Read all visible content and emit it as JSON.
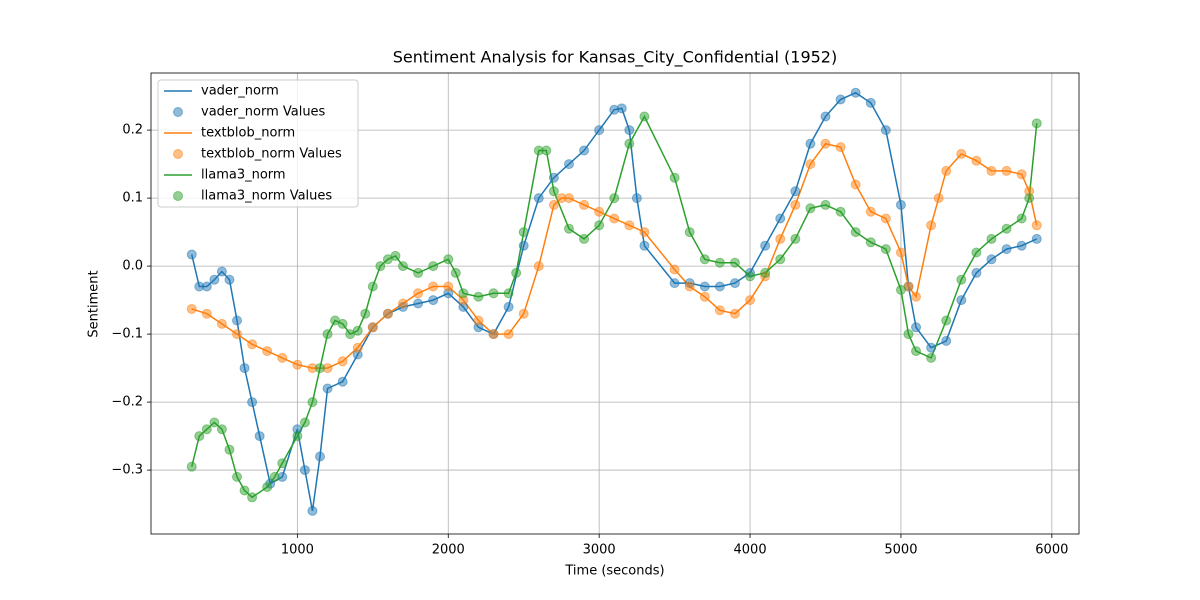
{
  "chart_data": {
    "type": "line",
    "title": "Sentiment Analysis for Kansas_City_Confidential (1952)",
    "xlabel": "Time (seconds)",
    "ylabel": "Sentiment",
    "xlim": [
      30,
      6180
    ],
    "ylim": [
      -0.394,
      0.284
    ],
    "xticks": [
      1000,
      2000,
      3000,
      4000,
      5000,
      6000
    ],
    "yticks": [
      {
        "value": -0.3,
        "label": "−0.3"
      },
      {
        "value": -0.2,
        "label": "−0.2"
      },
      {
        "value": -0.1,
        "label": "−0.1"
      },
      {
        "value": 0,
        "label": "0.0"
      },
      {
        "value": 0.1,
        "label": "0.1"
      },
      {
        "value": 0.2,
        "label": "0.2"
      }
    ],
    "grid": true,
    "legend": "upper left",
    "series": [
      {
        "name": "vader_norm",
        "values_name": "vader_norm Values",
        "color": "#1f77b4",
        "x": [
          300,
          350,
          400,
          450,
          500,
          550,
          600,
          650,
          700,
          750,
          820,
          900,
          1000,
          1050,
          1100,
          1150,
          1200,
          1300,
          1400,
          1500,
          1600,
          1700,
          1800,
          1900,
          2000,
          2100,
          2200,
          2300,
          2400,
          2500,
          2600,
          2700,
          2800,
          2900,
          3000,
          3100,
          3150,
          3200,
          3250,
          3300,
          3500,
          3600,
          3700,
          3800,
          3900,
          4000,
          4100,
          4200,
          4300,
          4400,
          4500,
          4600,
          4700,
          4800,
          4900,
          5000,
          5050,
          5100,
          5200,
          5300,
          5400,
          5500,
          5600,
          5700,
          5800,
          5900
        ],
        "values": [
          0.017,
          -0.03,
          -0.03,
          -0.02,
          -0.008,
          -0.02,
          -0.08,
          -0.15,
          -0.2,
          -0.25,
          -0.32,
          -0.31,
          -0.24,
          -0.3,
          -0.36,
          -0.28,
          -0.18,
          -0.17,
          -0.13,
          -0.09,
          -0.07,
          -0.06,
          -0.055,
          -0.05,
          -0.04,
          -0.06,
          -0.09,
          -0.1,
          -0.06,
          0.03,
          0.1,
          0.13,
          0.15,
          0.17,
          0.2,
          0.23,
          0.232,
          0.2,
          0.1,
          0.03,
          -0.025,
          -0.025,
          -0.03,
          -0.03,
          -0.025,
          -0.01,
          0.03,
          0.07,
          0.11,
          0.18,
          0.22,
          0.245,
          0.255,
          0.24,
          0.2,
          0.09,
          -0.03,
          -0.09,
          -0.12,
          -0.11,
          -0.05,
          -0.01,
          0.01,
          0.025,
          0.03,
          0.04
        ]
      },
      {
        "name": "textblob_norm",
        "values_name": "textblob_norm Values",
        "color": "#ff7f0e",
        "x": [
          300,
          400,
          500,
          600,
          700,
          800,
          900,
          1000,
          1100,
          1200,
          1300,
          1400,
          1500,
          1600,
          1700,
          1800,
          1900,
          2000,
          2100,
          2200,
          2300,
          2400,
          2500,
          2600,
          2700,
          2750,
          2800,
          2900,
          3000,
          3100,
          3200,
          3300,
          3500,
          3600,
          3700,
          3800,
          3900,
          4000,
          4100,
          4200,
          4300,
          4400,
          4500,
          4600,
          4700,
          4800,
          4900,
          5000,
          5050,
          5100,
          5200,
          5250,
          5300,
          5400,
          5500,
          5600,
          5700,
          5800,
          5850,
          5900
        ],
        "values": [
          -0.063,
          -0.07,
          -0.085,
          -0.1,
          -0.115,
          -0.125,
          -0.135,
          -0.145,
          -0.15,
          -0.15,
          -0.14,
          -0.12,
          -0.09,
          -0.07,
          -0.055,
          -0.04,
          -0.03,
          -0.03,
          -0.05,
          -0.08,
          -0.1,
          -0.1,
          -0.07,
          0.0,
          0.09,
          0.1,
          0.1,
          0.09,
          0.08,
          0.07,
          0.06,
          0.05,
          -0.005,
          -0.03,
          -0.045,
          -0.065,
          -0.07,
          -0.05,
          -0.015,
          0.04,
          0.09,
          0.15,
          0.18,
          0.175,
          0.12,
          0.08,
          0.07,
          0.02,
          -0.03,
          -0.045,
          0.06,
          0.1,
          0.14,
          0.165,
          0.155,
          0.14,
          0.14,
          0.135,
          0.11,
          0.06
        ]
      },
      {
        "name": "llama3_norm",
        "values_name": "llama3_norm Values",
        "color": "#2ca02c",
        "x": [
          300,
          350,
          400,
          450,
          500,
          550,
          600,
          650,
          700,
          800,
          850,
          900,
          1000,
          1050,
          1100,
          1150,
          1200,
          1250,
          1300,
          1350,
          1400,
          1450,
          1500,
          1550,
          1600,
          1650,
          1700,
          1800,
          1900,
          2000,
          2050,
          2100,
          2200,
          2300,
          2400,
          2450,
          2500,
          2600,
          2650,
          2700,
          2800,
          2900,
          3000,
          3100,
          3200,
          3300,
          3500,
          3600,
          3700,
          3800,
          3900,
          4000,
          4100,
          4200,
          4300,
          4400,
          4500,
          4600,
          4700,
          4800,
          4900,
          5000,
          5050,
          5100,
          5200,
          5300,
          5400,
          5500,
          5600,
          5700,
          5800,
          5850,
          5900
        ],
        "values": [
          -0.295,
          -0.25,
          -0.24,
          -0.23,
          -0.24,
          -0.27,
          -0.31,
          -0.33,
          -0.34,
          -0.325,
          -0.31,
          -0.29,
          -0.25,
          -0.23,
          -0.2,
          -0.15,
          -0.1,
          -0.08,
          -0.085,
          -0.1,
          -0.095,
          -0.07,
          -0.03,
          0.0,
          0.01,
          0.015,
          0.0,
          -0.01,
          0.0,
          0.01,
          -0.01,
          -0.04,
          -0.045,
          -0.04,
          -0.04,
          -0.01,
          0.05,
          0.17,
          0.17,
          0.11,
          0.055,
          0.04,
          0.06,
          0.1,
          0.18,
          0.22,
          0.13,
          0.05,
          0.01,
          0.005,
          0.005,
          -0.015,
          -0.01,
          0.01,
          0.04,
          0.085,
          0.09,
          0.08,
          0.05,
          0.035,
          0.025,
          -0.035,
          -0.1,
          -0.125,
          -0.135,
          -0.08,
          -0.02,
          0.02,
          0.04,
          0.055,
          0.07,
          0.1,
          0.21
        ]
      }
    ]
  }
}
